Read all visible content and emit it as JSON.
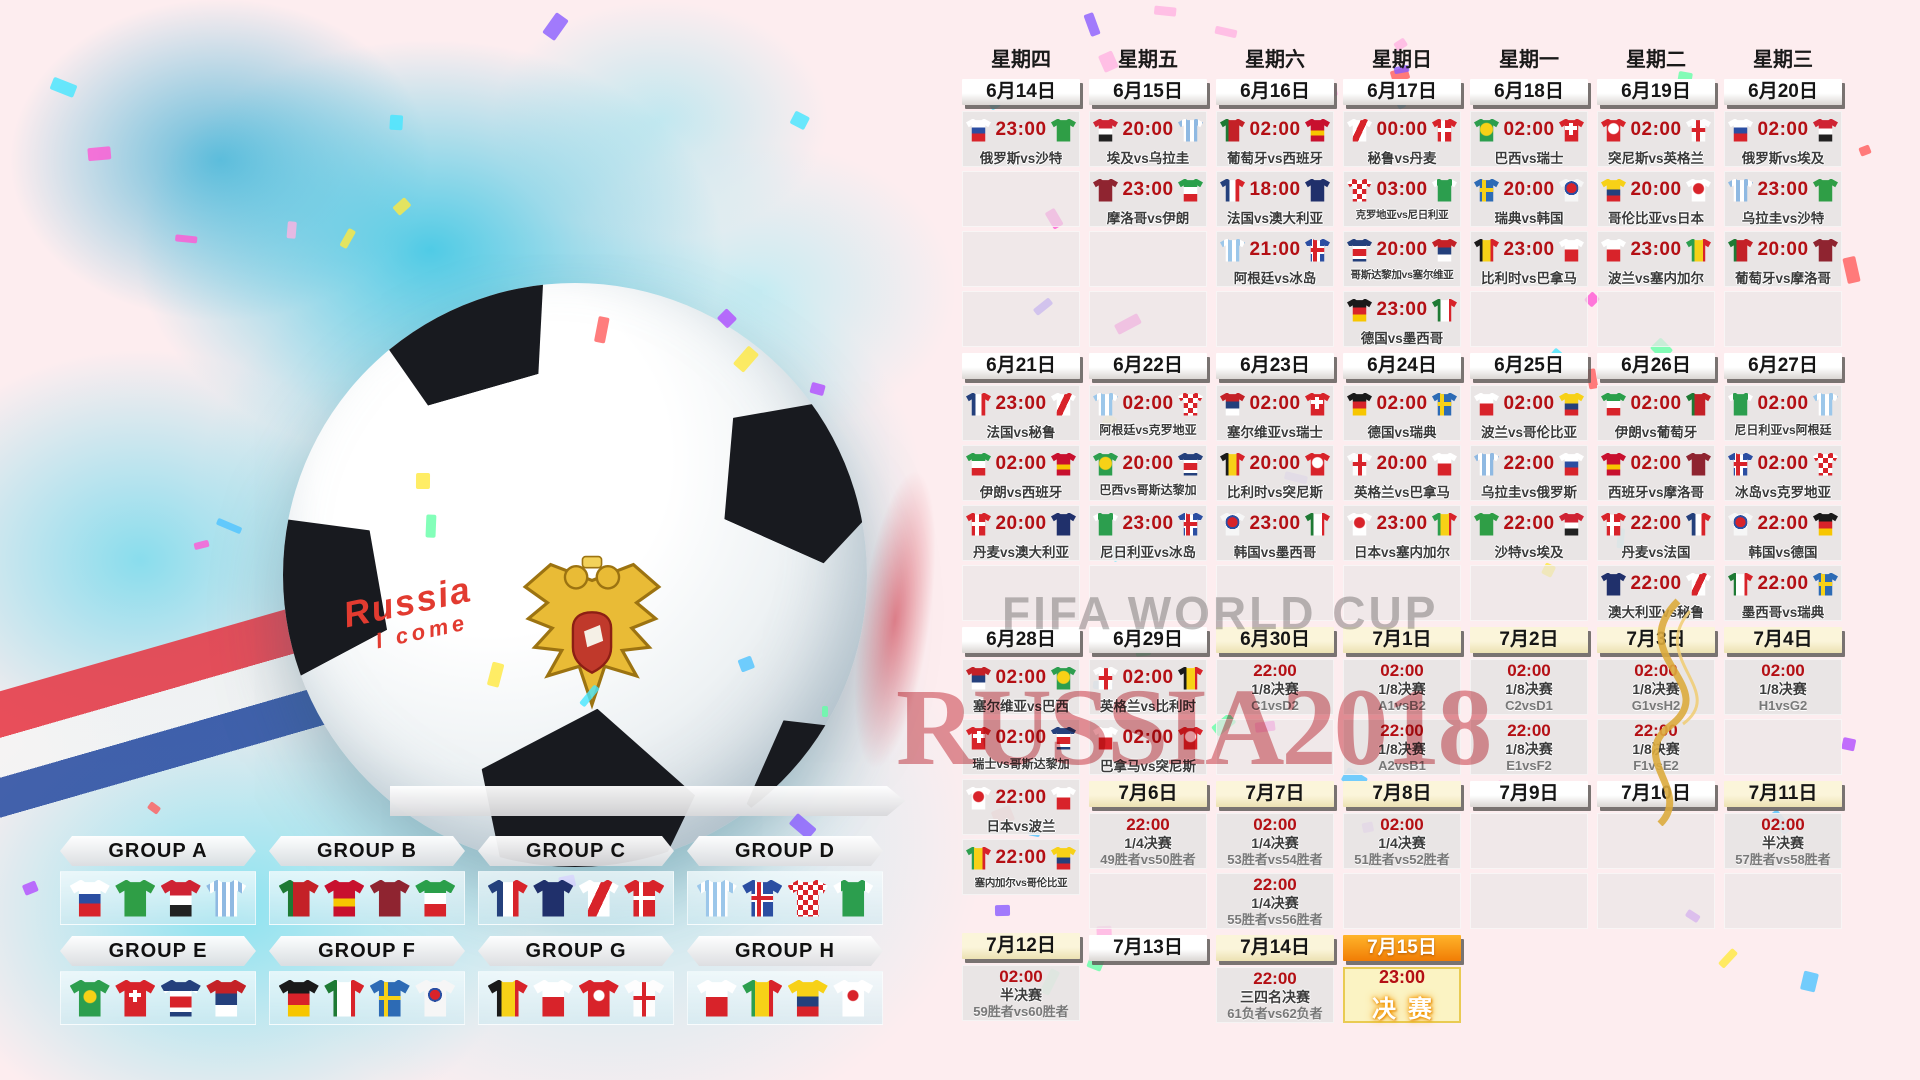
{
  "poster": {
    "watermark_fifa": "FIFA WORLD CUP",
    "watermark_russia": "RUSSIA2018",
    "ball_handwriting_line1": "Russia",
    "ball_handwriting_line2": "I come"
  },
  "teams": {
    "俄罗斯": "linear-gradient(#ffffff 0 38%,#2b4ea2 38% 64%,#d8232a 64% 100%)",
    "沙特": "#2f9e46",
    "埃及": "linear-gradient(#cf2333 0 42%,#ffffff 42% 68%,#222222 68% 100%)",
    "乌拉圭": "repeating-linear-gradient(90deg,#8fb9e2 0 4px,#ffffff 4px 8px)",
    "葡萄牙": "linear-gradient(90deg,#1e7a34 0 35%,#c42127 35% 100%)",
    "西班牙": "linear-gradient(#c8102e 0 50%,#f7c600 50% 72%,#c8102e 72% 100%)",
    "摩洛哥": "#8f2430",
    "伊朗": "linear-gradient(#2a9f4a 0 35%,#ffffff 35% 65%,#d8232a 65% 100%)",
    "法国": "linear-gradient(90deg,#24407c 0 38%,#ffffff 38% 62%,#d8232a 62% 100%)",
    "澳大利亚": "#20306b",
    "秘鲁": "linear-gradient(115deg,#ffffff 0 40%,#d8232a 40% 60%,#ffffff 60% 100%)",
    "丹麦": "linear-gradient(#ffffff,#ffffff) 50% 50%/100% 4px no-repeat, linear-gradient(#ffffff,#ffffff) 42% 50%/4px 100% no-repeat, #d8232a",
    "阿根廷": "repeating-linear-gradient(90deg,#9cc7ea 0 4px,#ffffff 4px 8px)",
    "冰岛": "linear-gradient(#d8232a,#d8232a) 50% 50%/100% 4px no-repeat, linear-gradient(#d8232a,#d8232a) 40% 50%/4px 100% no-repeat, linear-gradient(#ffffff,#ffffff) 50% 50%/100% 8px no-repeat, linear-gradient(#ffffff,#ffffff) 40% 50%/8px 100% no-repeat, #2b4ea2",
    "克罗地亚": "conic-gradient(#d8232a 0 90deg,#ffffff 90deg 180deg,#d8232a 180deg 270deg,#ffffff 270deg 360deg) 0 0/10px 10px",
    "尼日利亚": "linear-gradient(90deg,#ffffff 0 20%,#2c9e4e 20% 80%,#ffffff 80% 100%)",
    "巴西": "radial-gradient(circle at 50% 45%,#f7d117 0 6px,transparent 7px), #2c9e4e",
    "瑞士": "linear-gradient(#ffffff,#ffffff) 50% 42%/12px 4px no-repeat, linear-gradient(#ffffff,#ffffff) 50% 42%/4px 12px no-repeat, #d8232a",
    "哥斯达黎加": "linear-gradient(#24407c 0 30%,#ffffff 30% 44%,#d8232a 44% 74%,#ffffff 74% 86%,#24407c 86% 100%)",
    "塞尔维亚": "linear-gradient(#c42127 0 36%,#24407c 36% 68%,#ffffff 68% 100%)",
    "德国": "linear-gradient(#1a1a1a 0 36%,#d8232a 36% 68%,#f7c600 68% 100%)",
    "墨西哥": "linear-gradient(90deg,#1e7a34 0 33%,#ffffff 33% 67%,#d8232a 67% 100%)",
    "瑞典": "linear-gradient(#f7d117,#f7d117) 50% 50%/100% 4px no-repeat, linear-gradient(#f7d117,#f7d117) 40% 50%/4px 100% no-repeat, #2d6bb5",
    "韩国": "radial-gradient(circle at 50% 40%,#d8232a 0 5px,#2b4ea2 5px 7px,transparent 7px), #f6f6f6",
    "比利时": "linear-gradient(90deg,#1a1a1a 0 34%,#f7d117 34% 67%,#d8232a 67% 100%)",
    "巴拿马": "linear-gradient(#ffffff 0 46%,#d8232a 46% 100%)",
    "突尼斯": "radial-gradient(circle at 50% 42%,#ffffff 0 5px,transparent 6px), #d8232a",
    "英格兰": "linear-gradient(#d8232a,#d8232a) 50% 50%/100% 4px no-repeat, linear-gradient(#d8232a,#d8232a) 50% 50%/4px 100% no-repeat, #fdfdfd",
    "波兰": "linear-gradient(#ffffff 0 46%,#d8232a 46% 100%)",
    "塞内加尔": "linear-gradient(90deg,#2c9e4e 0 33%,#f7d117 33% 67%,#d8232a 67% 100%)",
    "哥伦比亚": "linear-gradient(#f7d117 0 45%,#24407c 45% 72%,#d8232a 72% 100%)",
    "日本": "radial-gradient(circle at 50% 42%,#d8232a 0 5px,transparent 6px), #ffffff"
  },
  "calendar": {
    "columns": [
      {
        "weekday": "星期四",
        "items": [
          {
            "t": "d",
            "l": "6月14日",
            "v": "w"
          },
          {
            "t": "m",
            "tm": "23:00",
            "h": "俄罗斯",
            "a": "沙特"
          },
          {
            "t": "e"
          },
          {
            "t": "e"
          },
          {
            "t": "e"
          },
          {
            "t": "d",
            "l": "6月21日",
            "v": "w"
          },
          {
            "t": "m",
            "tm": "23:00",
            "h": "法国",
            "a": "秘鲁"
          },
          {
            "t": "m",
            "tm": "02:00",
            "h": "伊朗",
            "a": "西班牙"
          },
          {
            "t": "m",
            "tm": "20:00",
            "h": "丹麦",
            "a": "澳大利亚"
          },
          {
            "t": "e"
          },
          {
            "t": "d",
            "l": "6月28日",
            "v": "w"
          },
          {
            "t": "m",
            "tm": "02:00",
            "h": "塞尔维亚",
            "a": "巴西"
          },
          {
            "t": "m",
            "tm": "02:00",
            "h": "瑞士",
            "a": "哥斯达黎加"
          },
          {
            "t": "m",
            "tm": "22:00",
            "h": "日本",
            "a": "波兰"
          },
          {
            "t": "m",
            "tm": "22:00",
            "h": "塞内加尔",
            "a": "哥伦比亚"
          },
          {
            "t": "s",
            "h": 28
          },
          {
            "t": "d",
            "l": "7月12日",
            "v": "y"
          },
          {
            "t": "k",
            "tm": "02:00",
            "st": "半决赛",
            "w": "59胜者vs60胜者"
          }
        ]
      },
      {
        "weekday": "星期五",
        "items": [
          {
            "t": "d",
            "l": "6月15日",
            "v": "w"
          },
          {
            "t": "m",
            "tm": "20:00",
            "h": "埃及",
            "a": "乌拉圭"
          },
          {
            "t": "m",
            "tm": "23:00",
            "h": "摩洛哥",
            "a": "伊朗"
          },
          {
            "t": "e"
          },
          {
            "t": "e"
          },
          {
            "t": "d",
            "l": "6月22日",
            "v": "w"
          },
          {
            "t": "m",
            "tm": "02:00",
            "h": "阿根廷",
            "a": "克罗地亚"
          },
          {
            "t": "m",
            "tm": "20:00",
            "h": "巴西",
            "a": "哥斯达黎加"
          },
          {
            "t": "m",
            "tm": "23:00",
            "h": "尼日利亚",
            "a": "冰岛"
          },
          {
            "t": "e"
          },
          {
            "t": "d",
            "l": "6月29日",
            "v": "w"
          },
          {
            "t": "m",
            "tm": "02:00",
            "h": "英格兰",
            "a": "比利时"
          },
          {
            "t": "m",
            "tm": "02:00",
            "h": "巴拿马",
            "a": "突尼斯"
          },
          {
            "t": "d",
            "l": "7月6日",
            "v": "y"
          },
          {
            "t": "k",
            "tm": "22:00",
            "st": "1/4决赛",
            "w": "49胜者vs50胜者"
          },
          {
            "t": "e"
          },
          {
            "t": "d",
            "l": "7月13日",
            "v": "w"
          }
        ]
      },
      {
        "weekday": "星期六",
        "items": [
          {
            "t": "d",
            "l": "6月16日",
            "v": "w"
          },
          {
            "t": "m",
            "tm": "02:00",
            "h": "葡萄牙",
            "a": "西班牙"
          },
          {
            "t": "m",
            "tm": "18:00",
            "h": "法国",
            "a": "澳大利亚"
          },
          {
            "t": "m",
            "tm": "21:00",
            "h": "阿根廷",
            "a": "冰岛"
          },
          {
            "t": "e"
          },
          {
            "t": "d",
            "l": "6月23日",
            "v": "w"
          },
          {
            "t": "m",
            "tm": "02:00",
            "h": "塞尔维亚",
            "a": "瑞士"
          },
          {
            "t": "m",
            "tm": "20:00",
            "h": "比利时",
            "a": "突尼斯"
          },
          {
            "t": "m",
            "tm": "23:00",
            "h": "韩国",
            "a": "墨西哥"
          },
          {
            "t": "e"
          },
          {
            "t": "d",
            "l": "6月30日",
            "v": "y"
          },
          {
            "t": "k",
            "tm": "22:00",
            "st": "1/8决赛",
            "w": "C1vsD2"
          },
          {
            "t": "e"
          },
          {
            "t": "d",
            "l": "7月7日",
            "v": "y"
          },
          {
            "t": "k",
            "tm": "02:00",
            "st": "1/4决赛",
            "w": "53胜者vs54胜者"
          },
          {
            "t": "k",
            "tm": "22:00",
            "st": "1/4决赛",
            "w": "55胜者vs56胜者"
          },
          {
            "t": "d",
            "l": "7月14日",
            "v": "y"
          },
          {
            "t": "k",
            "tm": "22:00",
            "st": "三四名决赛",
            "w": "61负者vs62负者"
          }
        ]
      },
      {
        "weekday": "星期日",
        "items": [
          {
            "t": "d",
            "l": "6月17日",
            "v": "w"
          },
          {
            "t": "m",
            "tm": "00:00",
            "h": "秘鲁",
            "a": "丹麦"
          },
          {
            "t": "m",
            "tm": "03:00",
            "h": "克罗地亚",
            "a": "尼日利亚"
          },
          {
            "t": "m",
            "tm": "20:00",
            "h": "哥斯达黎加",
            "a": "塞尔维亚"
          },
          {
            "t": "m",
            "tm": "23:00",
            "h": "德国",
            "a": "墨西哥"
          },
          {
            "t": "d",
            "l": "6月24日",
            "v": "w"
          },
          {
            "t": "m",
            "tm": "02:00",
            "h": "德国",
            "a": "瑞典"
          },
          {
            "t": "m",
            "tm": "20:00",
            "h": "英格兰",
            "a": "巴拿马"
          },
          {
            "t": "m",
            "tm": "23:00",
            "h": "日本",
            "a": "塞内加尔"
          },
          {
            "t": "e"
          },
          {
            "t": "d",
            "l": "7月1日",
            "v": "y"
          },
          {
            "t": "k",
            "tm": "02:00",
            "st": "1/8决赛",
            "w": "A1vsB2"
          },
          {
            "t": "k",
            "tm": "22:00",
            "st": "1/8决赛",
            "w": "A2vsB1"
          },
          {
            "t": "d",
            "l": "7月8日",
            "v": "y"
          },
          {
            "t": "k",
            "tm": "02:00",
            "st": "1/4决赛",
            "w": "51胜者vs52胜者"
          },
          {
            "t": "e"
          },
          {
            "t": "d",
            "l": "7月15日",
            "v": "o"
          },
          {
            "t": "f",
            "tm": "23:00",
            "l": "决赛"
          }
        ]
      },
      {
        "weekday": "星期一",
        "items": [
          {
            "t": "d",
            "l": "6月18日",
            "v": "w"
          },
          {
            "t": "m",
            "tm": "02:00",
            "h": "巴西",
            "a": "瑞士"
          },
          {
            "t": "m",
            "tm": "20:00",
            "h": "瑞典",
            "a": "韩国"
          },
          {
            "t": "m",
            "tm": "23:00",
            "h": "比利时",
            "a": "巴拿马"
          },
          {
            "t": "e"
          },
          {
            "t": "d",
            "l": "6月25日",
            "v": "w"
          },
          {
            "t": "m",
            "tm": "02:00",
            "h": "波兰",
            "a": "哥伦比亚"
          },
          {
            "t": "m",
            "tm": "22:00",
            "h": "乌拉圭",
            "a": "俄罗斯"
          },
          {
            "t": "m",
            "tm": "22:00",
            "h": "沙特",
            "a": "埃及"
          },
          {
            "t": "e"
          },
          {
            "t": "d",
            "l": "7月2日",
            "v": "y"
          },
          {
            "t": "k",
            "tm": "02:00",
            "st": "1/8决赛",
            "w": "C2vsD1"
          },
          {
            "t": "k",
            "tm": "22:00",
            "st": "1/8决赛",
            "w": "E1vsF2"
          },
          {
            "t": "d",
            "l": "7月9日",
            "v": "w"
          },
          {
            "t": "e"
          },
          {
            "t": "e"
          }
        ]
      },
      {
        "weekday": "星期二",
        "items": [
          {
            "t": "d",
            "l": "6月19日",
            "v": "w"
          },
          {
            "t": "m",
            "tm": "02:00",
            "h": "突尼斯",
            "a": "英格兰"
          },
          {
            "t": "m",
            "tm": "20:00",
            "h": "哥伦比亚",
            "a": "日本"
          },
          {
            "t": "m",
            "tm": "23:00",
            "h": "波兰",
            "a": "塞内加尔"
          },
          {
            "t": "e"
          },
          {
            "t": "d",
            "l": "6月26日",
            "v": "w"
          },
          {
            "t": "m",
            "tm": "02:00",
            "h": "伊朗",
            "a": "葡萄牙"
          },
          {
            "t": "m",
            "tm": "02:00",
            "h": "西班牙",
            "a": "摩洛哥"
          },
          {
            "t": "m",
            "tm": "22:00",
            "h": "丹麦",
            "a": "法国"
          },
          {
            "t": "m",
            "tm": "22:00",
            "h": "澳大利亚",
            "a": "秘鲁"
          },
          {
            "t": "d",
            "l": "7月3日",
            "v": "y"
          },
          {
            "t": "k",
            "tm": "02:00",
            "st": "1/8决赛",
            "w": "G1vsH2"
          },
          {
            "t": "k",
            "tm": "22:00",
            "st": "1/8决赛",
            "w": "F1vsE2"
          },
          {
            "t": "d",
            "l": "7月10日",
            "v": "w"
          },
          {
            "t": "e"
          },
          {
            "t": "e"
          }
        ]
      },
      {
        "weekday": "星期三",
        "items": [
          {
            "t": "d",
            "l": "6月20日",
            "v": "w"
          },
          {
            "t": "m",
            "tm": "02:00",
            "h": "俄罗斯",
            "a": "埃及"
          },
          {
            "t": "m",
            "tm": "23:00",
            "h": "乌拉圭",
            "a": "沙特"
          },
          {
            "t": "m",
            "tm": "20:00",
            "h": "葡萄牙",
            "a": "摩洛哥"
          },
          {
            "t": "e"
          },
          {
            "t": "d",
            "l": "6月27日",
            "v": "w"
          },
          {
            "t": "m",
            "tm": "02:00",
            "h": "尼日利亚",
            "a": "阿根廷"
          },
          {
            "t": "m",
            "tm": "02:00",
            "h": "冰岛",
            "a": "克罗地亚"
          },
          {
            "t": "m",
            "tm": "22:00",
            "h": "韩国",
            "a": "德国"
          },
          {
            "t": "m",
            "tm": "22:00",
            "h": "墨西哥",
            "a": "瑞典"
          },
          {
            "t": "d",
            "l": "7月4日",
            "v": "y"
          },
          {
            "t": "k",
            "tm": "02:00",
            "st": "1/8决赛",
            "w": "H1vsG2"
          },
          {
            "t": "e"
          },
          {
            "t": "d",
            "l": "7月11日",
            "v": "y"
          },
          {
            "t": "k",
            "tm": "02:00",
            "st": "半决赛",
            "w": "57胜者vs58胜者"
          },
          {
            "t": "e"
          }
        ]
      }
    ]
  },
  "groups": [
    {
      "name": "GROUP A",
      "teams": [
        "俄罗斯",
        "沙特",
        "埃及",
        "乌拉圭"
      ]
    },
    {
      "name": "GROUP B",
      "teams": [
        "葡萄牙",
        "西班牙",
        "摩洛哥",
        "伊朗"
      ]
    },
    {
      "name": "GROUP C",
      "teams": [
        "法国",
        "澳大利亚",
        "秘鲁",
        "丹麦"
      ]
    },
    {
      "name": "GROUP D",
      "teams": [
        "阿根廷",
        "冰岛",
        "克罗地亚",
        "尼日利亚"
      ]
    },
    {
      "name": "GROUP E",
      "teams": [
        "巴西",
        "瑞士",
        "哥斯达黎加",
        "塞尔维亚"
      ]
    },
    {
      "name": "GROUP F",
      "teams": [
        "德国",
        "墨西哥",
        "瑞典",
        "韩国"
      ]
    },
    {
      "name": "GROUP G",
      "teams": [
        "比利时",
        "巴拿马",
        "突尼斯",
        "英格兰"
      ]
    },
    {
      "name": "GROUP H",
      "teams": [
        "波兰",
        "塞内加尔",
        "哥伦比亚",
        "日本"
      ]
    }
  ]
}
